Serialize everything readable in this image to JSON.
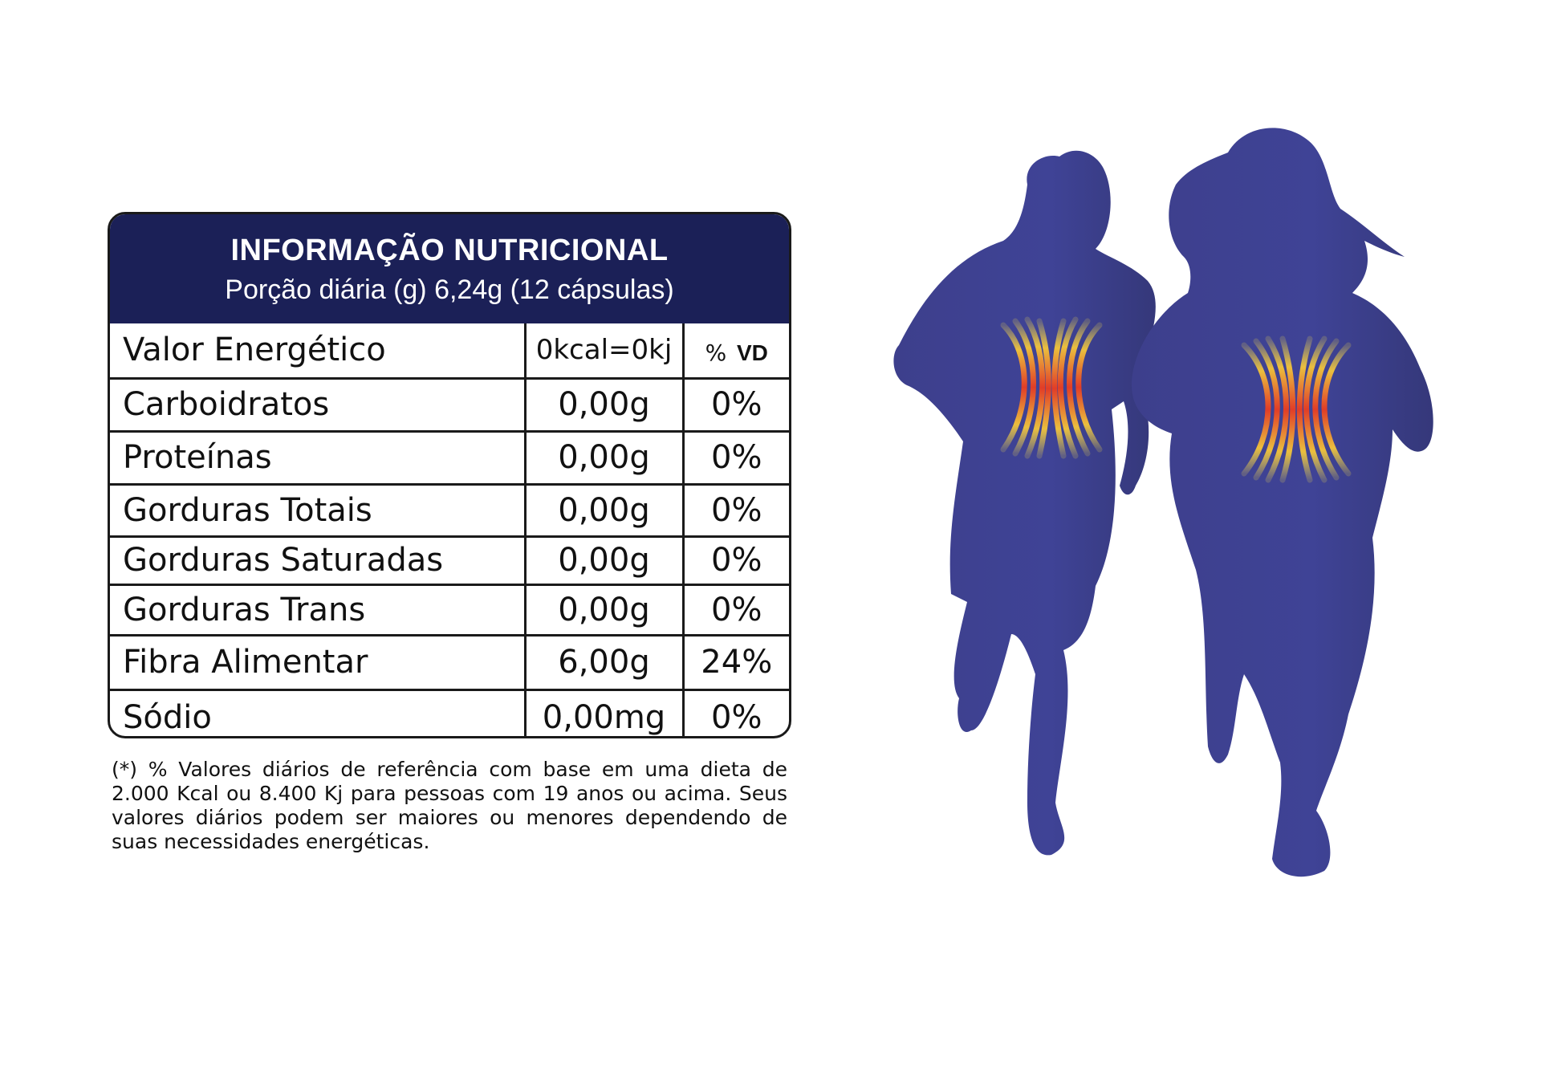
{
  "header": {
    "title": "INFORMAÇÃO NUTRICIONAL",
    "subtitle": "Porção diária (g) 6,24g (12 cápsulas)"
  },
  "table": {
    "header_row": {
      "name": "Valor Energético",
      "value": "0kcal=0kj",
      "vd_pct": "%",
      "vd_label": "VD"
    },
    "rows": [
      {
        "name": "Carboidratos",
        "value": "0,00g",
        "vd": "0%"
      },
      {
        "name": "Proteínas",
        "value": "0,00g",
        "vd": "0%"
      },
      {
        "name": "Gorduras Totais",
        "value": "0,00g",
        "vd": "0%"
      },
      {
        "name": "Gorduras Saturadas",
        "value": "0,00g",
        "vd": "0%"
      },
      {
        "name": "Gorduras Trans",
        "value": "0,00g",
        "vd": "0%"
      },
      {
        "name": "Fibra Alimentar",
        "value": "6,00g",
        "vd": "24%"
      },
      {
        "name": "Sódio",
        "value": "0,00mg",
        "vd": "0%"
      }
    ]
  },
  "footnote": "(*) % Valores diários de referência com base em uma dieta de 2.000 Kcal ou 8.400 Kj para pessoas com 19 anos ou acima. Seus valores diários podem ser maiores ou menores dependendo de suas necessidades energéticas.",
  "illustration": {
    "name": "running-silhouettes",
    "colors": {
      "silhouette": "#3b3f8f",
      "glow_hot": "#e8321e",
      "glow_warm": "#f7d23a"
    }
  },
  "colors": {
    "header_bg": "#1b2057",
    "border": "#1a1a1a"
  }
}
